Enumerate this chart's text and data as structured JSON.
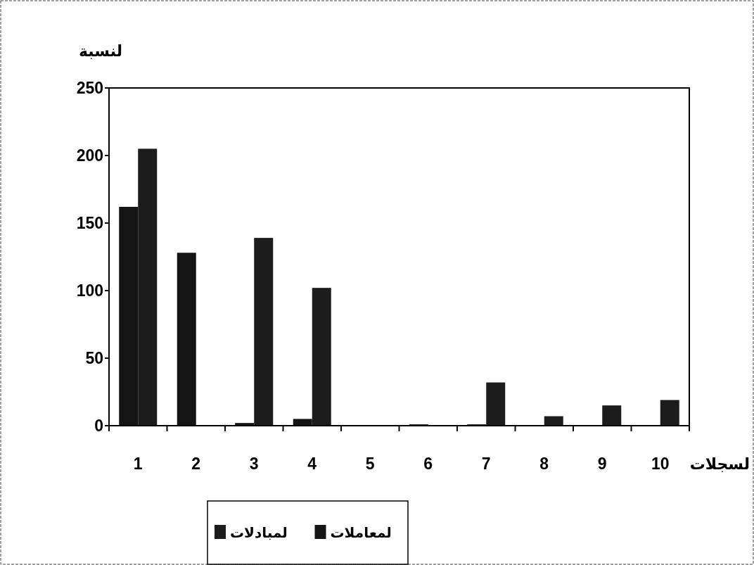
{
  "chart_data": {
    "type": "bar",
    "ylabel": "لنسبة",
    "xlabel": "لسجلات",
    "categories": [
      "1",
      "2",
      "3",
      "4",
      "5",
      "6",
      "7",
      "8",
      "9",
      "10"
    ],
    "series": [
      {
        "name": "لمعاملات",
        "color": "#141414",
        "values": [
          162,
          128,
          2,
          5,
          0,
          1,
          1,
          0,
          0,
          0
        ]
      },
      {
        "name": "لمبادلات",
        "color": "#1c1c1c",
        "values": [
          205,
          0,
          139,
          102,
          0,
          0,
          32,
          7,
          15,
          19
        ]
      }
    ],
    "ylim": [
      0,
      250
    ],
    "yticks": [
      0,
      50,
      100,
      150,
      200,
      250
    ],
    "legend": "bottom"
  }
}
